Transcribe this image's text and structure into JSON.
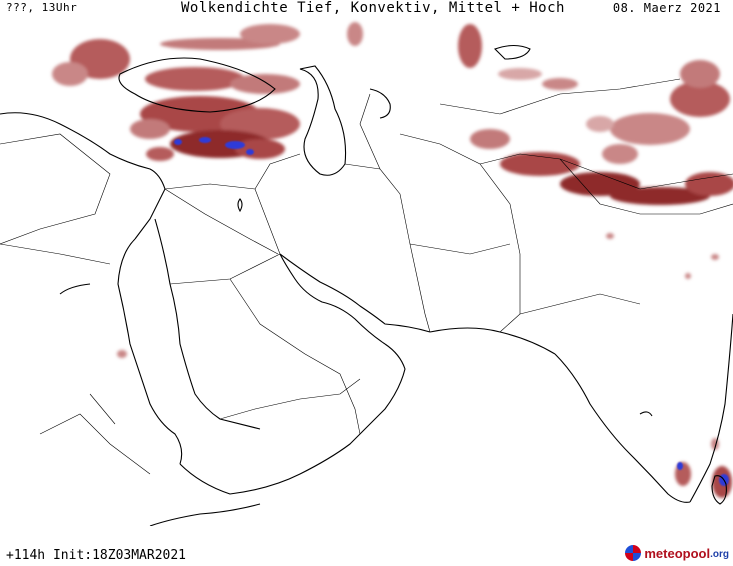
{
  "header": {
    "left_label": "???, 13Uhr",
    "title": "Wolkendichte  Tief, Konvektiv, Mittel + Hoch",
    "date": "08. Maerz 2021"
  },
  "footer": {
    "run_info": "+114h Init:18Z03MAR2021",
    "brand_name": "meteopool",
    "brand_tld": ".org"
  },
  "map": {
    "region": "Middle East, Arabian Peninsula, South Asia",
    "colors": {
      "coast": "#000000",
      "cloud_thin": "#d8a7a7",
      "cloud_medium": "#b55c5c",
      "cloud_thick": "#8e2a2a",
      "convective": "#2f3bd9"
    }
  }
}
